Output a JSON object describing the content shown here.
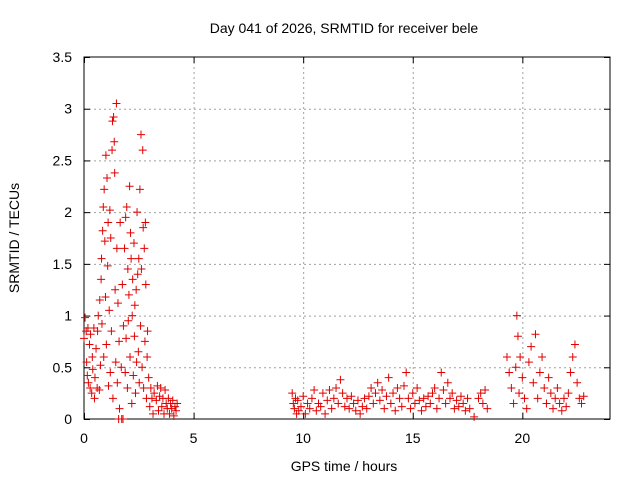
{
  "chart_data": {
    "type": "scatter",
    "title": "Day 041 of 2026, SRMTID for receiver bele",
    "xlabel": "GPS time / hours",
    "ylabel": "SRMTID / TECUs",
    "xlim": [
      0,
      24
    ],
    "ylim": [
      0,
      3.5
    ],
    "xticks": [
      0,
      5,
      10,
      15,
      20
    ],
    "xtick_labels": [
      "0",
      "5",
      "10",
      "15",
      "20"
    ],
    "yticks": [
      0,
      0.5,
      1,
      1.5,
      2,
      2.5,
      3,
      3.5
    ],
    "ytick_labels": [
      "0",
      "0.5",
      "1",
      "1.5",
      "2",
      "2.5",
      "3",
      "3.5"
    ],
    "grid": true,
    "marker": "+",
    "series": [
      {
        "name": "SRMTID",
        "color": "#e00000",
        "points": [
          [
            0.0,
            0.78
          ],
          [
            0.05,
            0.98
          ],
          [
            0.1,
            0.85
          ],
          [
            0.12,
            0.55
          ],
          [
            0.15,
            0.42
          ],
          [
            0.18,
            0.88
          ],
          [
            0.2,
            0.35
          ],
          [
            0.25,
            0.72
          ],
          [
            0.28,
            0.3
          ],
          [
            0.3,
            0.82
          ],
          [
            0.35,
            0.25
          ],
          [
            0.38,
            0.6
          ],
          [
            0.4,
            0.48
          ],
          [
            0.45,
            0.88
          ],
          [
            0.48,
            0.2
          ],
          [
            0.5,
            0.4
          ],
          [
            0.55,
            0.68
          ],
          [
            0.6,
            0.3
          ],
          [
            0.62,
            0.85
          ],
          [
            0.65,
            1.0
          ],
          [
            0.7,
            0.28
          ],
          [
            0.72,
            1.15
          ],
          [
            0.75,
            0.52
          ],
          [
            0.78,
            1.35
          ],
          [
            0.8,
            1.55
          ],
          [
            0.82,
            0.92
          ],
          [
            0.85,
            1.82
          ],
          [
            0.88,
            2.05
          ],
          [
            0.9,
            0.6
          ],
          [
            0.92,
            2.22
          ],
          [
            0.95,
            1.72
          ],
          [
            0.98,
            1.18
          ],
          [
            1.0,
            2.55
          ],
          [
            1.02,
            0.72
          ],
          [
            1.05,
            2.33
          ],
          [
            1.08,
            1.48
          ],
          [
            1.1,
            1.9
          ],
          [
            1.12,
            0.32
          ],
          [
            1.15,
            1.05
          ],
          [
            1.18,
            2.02
          ],
          [
            1.2,
            0.45
          ],
          [
            1.22,
            1.75
          ],
          [
            1.25,
            0.85
          ],
          [
            1.28,
            2.6
          ],
          [
            1.3,
            2.88
          ],
          [
            1.32,
            0.2
          ],
          [
            1.35,
            2.92
          ],
          [
            1.38,
            2.68
          ],
          [
            1.4,
            2.38
          ],
          [
            1.42,
            1.25
          ],
          [
            1.45,
            0.55
          ],
          [
            1.48,
            3.05
          ],
          [
            1.5,
            1.65
          ],
          [
            1.52,
            0.35
          ],
          [
            1.55,
            1.12
          ],
          [
            1.58,
            0.0
          ],
          [
            1.6,
            0.75
          ],
          [
            1.62,
            0.1
          ],
          [
            1.65,
            1.9
          ],
          [
            1.7,
            0.5
          ],
          [
            1.72,
            0.0
          ],
          [
            1.75,
            1.3
          ],
          [
            1.78,
            0.0
          ],
          [
            1.8,
            0.9
          ],
          [
            1.85,
            1.65
          ],
          [
            1.88,
            0.45
          ],
          [
            1.9,
            1.95
          ],
          [
            1.92,
            0.78
          ],
          [
            1.95,
            2.05
          ],
          [
            1.98,
            0.3
          ],
          [
            2.0,
            1.45
          ],
          [
            2.02,
            0.95
          ],
          [
            2.05,
            1.2
          ],
          [
            2.08,
            2.25
          ],
          [
            2.1,
            0.6
          ],
          [
            2.12,
            1.8
          ],
          [
            2.15,
            1.55
          ],
          [
            2.18,
            0.15
          ],
          [
            2.2,
            1.0
          ],
          [
            2.22,
            1.35
          ],
          [
            2.25,
            0.42
          ],
          [
            2.28,
            1.7
          ],
          [
            2.3,
            0.8
          ],
          [
            2.32,
            1.1
          ],
          [
            2.35,
            0.25
          ],
          [
            2.38,
            1.25
          ],
          [
            2.4,
            0.55
          ],
          [
            2.42,
            2.0
          ],
          [
            2.45,
            1.4
          ],
          [
            2.48,
            0.65
          ],
          [
            2.5,
            1.55
          ],
          [
            2.52,
            0.35
          ],
          [
            2.55,
            2.22
          ],
          [
            2.58,
            0.9
          ],
          [
            2.6,
            2.75
          ],
          [
            2.62,
            1.45
          ],
          [
            2.65,
            0.5
          ],
          [
            2.68,
            2.6
          ],
          [
            2.7,
            1.85
          ],
          [
            2.72,
            0.3
          ],
          [
            2.75,
            1.65
          ],
          [
            2.78,
            0.75
          ],
          [
            2.8,
            1.9
          ],
          [
            2.82,
            1.3
          ],
          [
            2.85,
            0.2
          ],
          [
            2.88,
            0.6
          ],
          [
            2.9,
            0.85
          ],
          [
            2.95,
            0.4
          ],
          [
            3.0,
            0.12
          ],
          [
            3.05,
            0.3
          ],
          [
            3.1,
            0.2
          ],
          [
            3.15,
            0.05
          ],
          [
            3.2,
            0.25
          ],
          [
            3.3,
            0.18
          ],
          [
            3.35,
            0.32
          ],
          [
            3.4,
            0.08
          ],
          [
            3.45,
            0.22
          ],
          [
            3.5,
            0.3
          ],
          [
            3.55,
            0.12
          ],
          [
            3.6,
            0.2
          ],
          [
            3.65,
            0.05
          ],
          [
            3.7,
            0.28
          ],
          [
            3.75,
            0.15
          ],
          [
            3.8,
            0.1
          ],
          [
            3.85,
            0.2
          ],
          [
            3.9,
            0.05
          ],
          [
            3.95,
            0.15
          ],
          [
            4.0,
            0.1
          ],
          [
            4.05,
            0.18
          ],
          [
            4.1,
            0.03
          ],
          [
            4.15,
            0.12
          ],
          [
            4.2,
            0.08
          ],
          [
            4.25,
            0.15
          ],
          [
            9.5,
            0.25
          ],
          [
            9.55,
            0.15
          ],
          [
            9.6,
            0.1
          ],
          [
            9.65,
            0.2
          ],
          [
            9.7,
            0.05
          ],
          [
            9.75,
            0.18
          ],
          [
            9.8,
            0.08
          ],
          [
            9.9,
            0.12
          ],
          [
            10.0,
            0.22
          ],
          [
            10.1,
            0.05
          ],
          [
            10.2,
            0.15
          ],
          [
            10.3,
            0.1
          ],
          [
            10.4,
            0.2
          ],
          [
            10.5,
            0.28
          ],
          [
            10.6,
            0.08
          ],
          [
            10.7,
            0.15
          ],
          [
            10.8,
            0.12
          ],
          [
            10.9,
            0.25
          ],
          [
            11.0,
            0.05
          ],
          [
            11.1,
            0.18
          ],
          [
            11.2,
            0.28
          ],
          [
            11.3,
            0.1
          ],
          [
            11.4,
            0.2
          ],
          [
            11.5,
            0.3
          ],
          [
            11.6,
            0.15
          ],
          [
            11.7,
            0.38
          ],
          [
            11.8,
            0.25
          ],
          [
            11.9,
            0.12
          ],
          [
            12.0,
            0.2
          ],
          [
            12.1,
            0.1
          ],
          [
            12.2,
            0.22
          ],
          [
            12.3,
            0.15
          ],
          [
            12.4,
            0.08
          ],
          [
            12.5,
            0.18
          ],
          [
            12.6,
            0.05
          ],
          [
            12.7,
            0.12
          ],
          [
            12.8,
            0.2
          ],
          [
            12.9,
            0.1
          ],
          [
            13.0,
            0.22
          ],
          [
            13.1,
            0.3
          ],
          [
            13.2,
            0.15
          ],
          [
            13.3,
            0.25
          ],
          [
            13.4,
            0.35
          ],
          [
            13.5,
            0.18
          ],
          [
            13.6,
            0.28
          ],
          [
            13.7,
            0.1
          ],
          [
            13.8,
            0.22
          ],
          [
            13.9,
            0.4
          ],
          [
            14.0,
            0.15
          ],
          [
            14.1,
            0.25
          ],
          [
            14.2,
            0.08
          ],
          [
            14.3,
            0.3
          ],
          [
            14.4,
            0.2
          ],
          [
            14.5,
            0.12
          ],
          [
            14.6,
            0.32
          ],
          [
            14.7,
            0.45
          ],
          [
            14.8,
            0.2
          ],
          [
            14.9,
            0.1
          ],
          [
            15.0,
            0.25
          ],
          [
            15.1,
            0.15
          ],
          [
            15.2,
            0.3
          ],
          [
            15.3,
            0.18
          ],
          [
            15.4,
            0.08
          ],
          [
            15.5,
            0.2
          ],
          [
            15.6,
            0.12
          ],
          [
            15.7,
            0.22
          ],
          [
            15.8,
            0.15
          ],
          [
            15.9,
            0.25
          ],
          [
            16.0,
            0.3
          ],
          [
            16.1,
            0.1
          ],
          [
            16.2,
            0.2
          ],
          [
            16.3,
            0.45
          ],
          [
            16.4,
            0.28
          ],
          [
            16.5,
            0.15
          ],
          [
            16.6,
            0.35
          ],
          [
            16.7,
            0.2
          ],
          [
            16.8,
            0.25
          ],
          [
            16.9,
            0.1
          ],
          [
            17.0,
            0.18
          ],
          [
            17.1,
            0.12
          ],
          [
            17.2,
            0.22
          ],
          [
            17.3,
            0.15
          ],
          [
            17.4,
            0.08
          ],
          [
            17.5,
            0.2
          ],
          [
            17.6,
            0.1
          ],
          [
            17.8,
            0.02
          ],
          [
            18.0,
            0.2
          ],
          [
            18.1,
            0.25
          ],
          [
            18.2,
            0.15
          ],
          [
            18.3,
            0.28
          ],
          [
            18.4,
            0.1
          ],
          [
            19.3,
            0.6
          ],
          [
            19.4,
            0.45
          ],
          [
            19.5,
            0.3
          ],
          [
            19.6,
            0.15
          ],
          [
            19.7,
            0.5
          ],
          [
            19.75,
            1.0
          ],
          [
            19.8,
            0.8
          ],
          [
            19.85,
            0.25
          ],
          [
            19.9,
            0.6
          ],
          [
            20.0,
            0.4
          ],
          [
            20.1,
            0.2
          ],
          [
            20.2,
            0.1
          ],
          [
            20.3,
            0.55
          ],
          [
            20.4,
            0.7
          ],
          [
            20.5,
            0.35
          ],
          [
            20.6,
            0.82
          ],
          [
            20.7,
            0.2
          ],
          [
            20.8,
            0.45
          ],
          [
            20.9,
            0.6
          ],
          [
            21.0,
            0.3
          ],
          [
            21.1,
            0.15
          ],
          [
            21.2,
            0.4
          ],
          [
            21.3,
            0.25
          ],
          [
            21.4,
            0.1
          ],
          [
            21.5,
            0.2
          ],
          [
            21.6,
            0.3
          ],
          [
            21.7,
            0.15
          ],
          [
            21.8,
            0.08
          ],
          [
            21.9,
            0.2
          ],
          [
            22.0,
            0.12
          ],
          [
            22.1,
            0.25
          ],
          [
            22.2,
            0.45
          ],
          [
            22.3,
            0.6
          ],
          [
            22.4,
            0.72
          ],
          [
            22.5,
            0.35
          ],
          [
            22.6,
            0.2
          ],
          [
            22.7,
            0.15
          ],
          [
            22.8,
            0.22
          ]
        ]
      }
    ]
  }
}
